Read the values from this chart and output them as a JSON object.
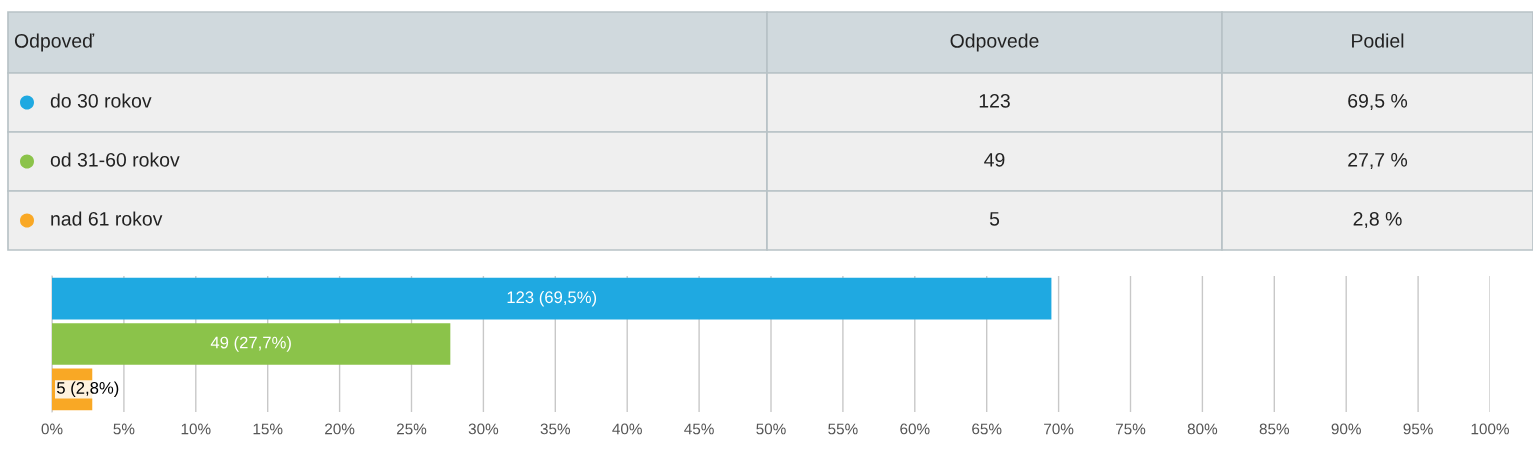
{
  "chart_data": {
    "type": "bar",
    "orientation": "horizontal",
    "categories": [
      null,
      null,
      null
    ],
    "values": [
      69.5,
      27.7,
      2.8
    ],
    "colors": [
      "#1fa9e1",
      "#8bc34a",
      "#f9a825"
    ],
    "value_labels": [
      "123 (69,5%)",
      "49 (27,7%)",
      "5 (2,8%)"
    ],
    "annotations": [
      "Odpoveď",
      "Odpovede",
      "Podiel",
      "do 30 rokov",
      "123",
      "69,5 %",
      "od 31-60 rokov",
      "49",
      "27,7 %",
      "nad 61 rokov",
      "5",
      "2,8 %"
    ],
    "xlim": [
      0,
      100
    ],
    "xticks": [
      {
        "value": 0,
        "label": "0%"
      },
      {
        "value": 5,
        "label": "5%"
      },
      {
        "value": 10,
        "label": "10%"
      },
      {
        "value": 15,
        "label": "15%"
      },
      {
        "value": 20,
        "label": "20%"
      },
      {
        "value": 25,
        "label": "25%"
      },
      {
        "value": 30,
        "label": "30%"
      },
      {
        "value": 35,
        "label": "35%"
      },
      {
        "value": 40,
        "label": "40%"
      },
      {
        "value": 45,
        "label": "45%"
      },
      {
        "value": 50,
        "label": "50%"
      },
      {
        "value": 55,
        "label": "55%"
      },
      {
        "value": 60,
        "label": "60%"
      },
      {
        "value": 65,
        "label": "65%"
      },
      {
        "value": 70,
        "label": "70%"
      },
      {
        "value": 75,
        "label": "75%"
      },
      {
        "value": 80,
        "label": "80%"
      },
      {
        "value": 85,
        "label": "85%"
      },
      {
        "value": 90,
        "label": "90%"
      },
      {
        "value": 95,
        "label": "95%"
      },
      {
        "value": 100,
        "label": "100%"
      }
    ],
    "grid": "x",
    "legend": false
  }
}
